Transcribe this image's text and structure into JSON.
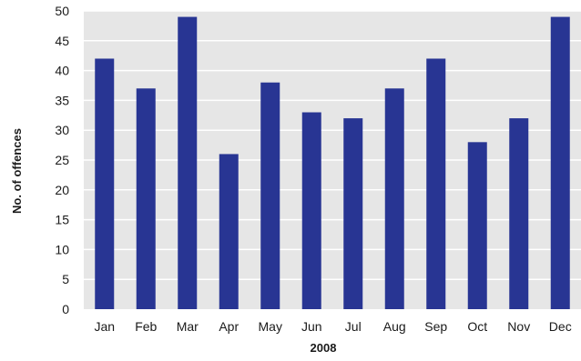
{
  "chart_data": {
    "type": "bar",
    "title": "",
    "xlabel": "2008",
    "ylabel": "No. of offences",
    "categories": [
      "Jan",
      "Feb",
      "Mar",
      "Apr",
      "May",
      "Jun",
      "Jul",
      "Aug",
      "Sep",
      "Oct",
      "Nov",
      "Dec"
    ],
    "values": [
      42,
      37,
      49,
      26,
      38,
      33,
      32,
      37,
      42,
      28,
      32,
      49
    ],
    "ylim": [
      0,
      50
    ],
    "yticks": [
      0,
      5,
      10,
      15,
      20,
      25,
      30,
      35,
      40,
      45,
      50
    ],
    "grid": true,
    "legend": "none",
    "colors": {
      "bar": "#283593",
      "plot_background": "#e6e6e6",
      "gridline": "#ffffff"
    }
  }
}
